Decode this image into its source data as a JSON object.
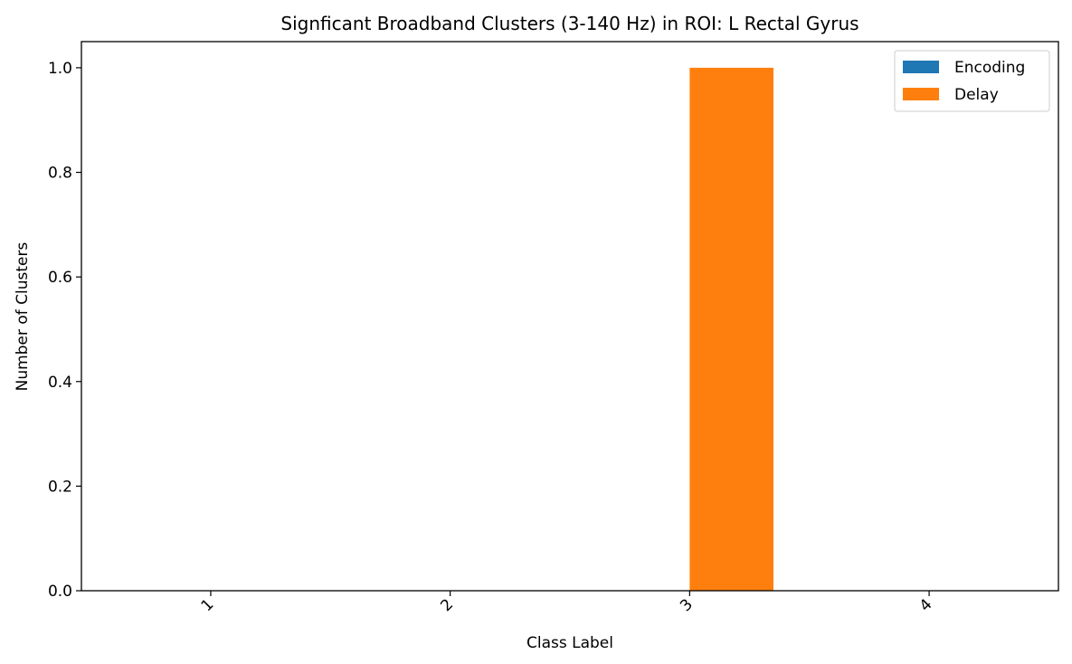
{
  "chart_data": {
    "type": "bar",
    "title": "Signficant Broadband Clusters (3-140 Hz) in ROI: L Rectal Gyrus",
    "xlabel": "Class Label",
    "ylabel": "Number of Clusters",
    "categories": [
      "1",
      "2",
      "3",
      "4"
    ],
    "series": [
      {
        "name": "Encoding",
        "values": [
          0,
          0,
          0,
          0
        ],
        "color": "#1f77b4"
      },
      {
        "name": "Delay",
        "values": [
          0,
          0,
          1,
          0
        ],
        "color": "#ff7f0e"
      }
    ],
    "ylim": [
      0,
      1.05
    ],
    "yticks": [
      0.0,
      0.2,
      0.4,
      0.6,
      0.8,
      1.0
    ],
    "yticklabels": [
      "0.0",
      "0.2",
      "0.4",
      "0.6",
      "0.8",
      "1.0"
    ],
    "grid": false,
    "legend_position": "top-right"
  }
}
